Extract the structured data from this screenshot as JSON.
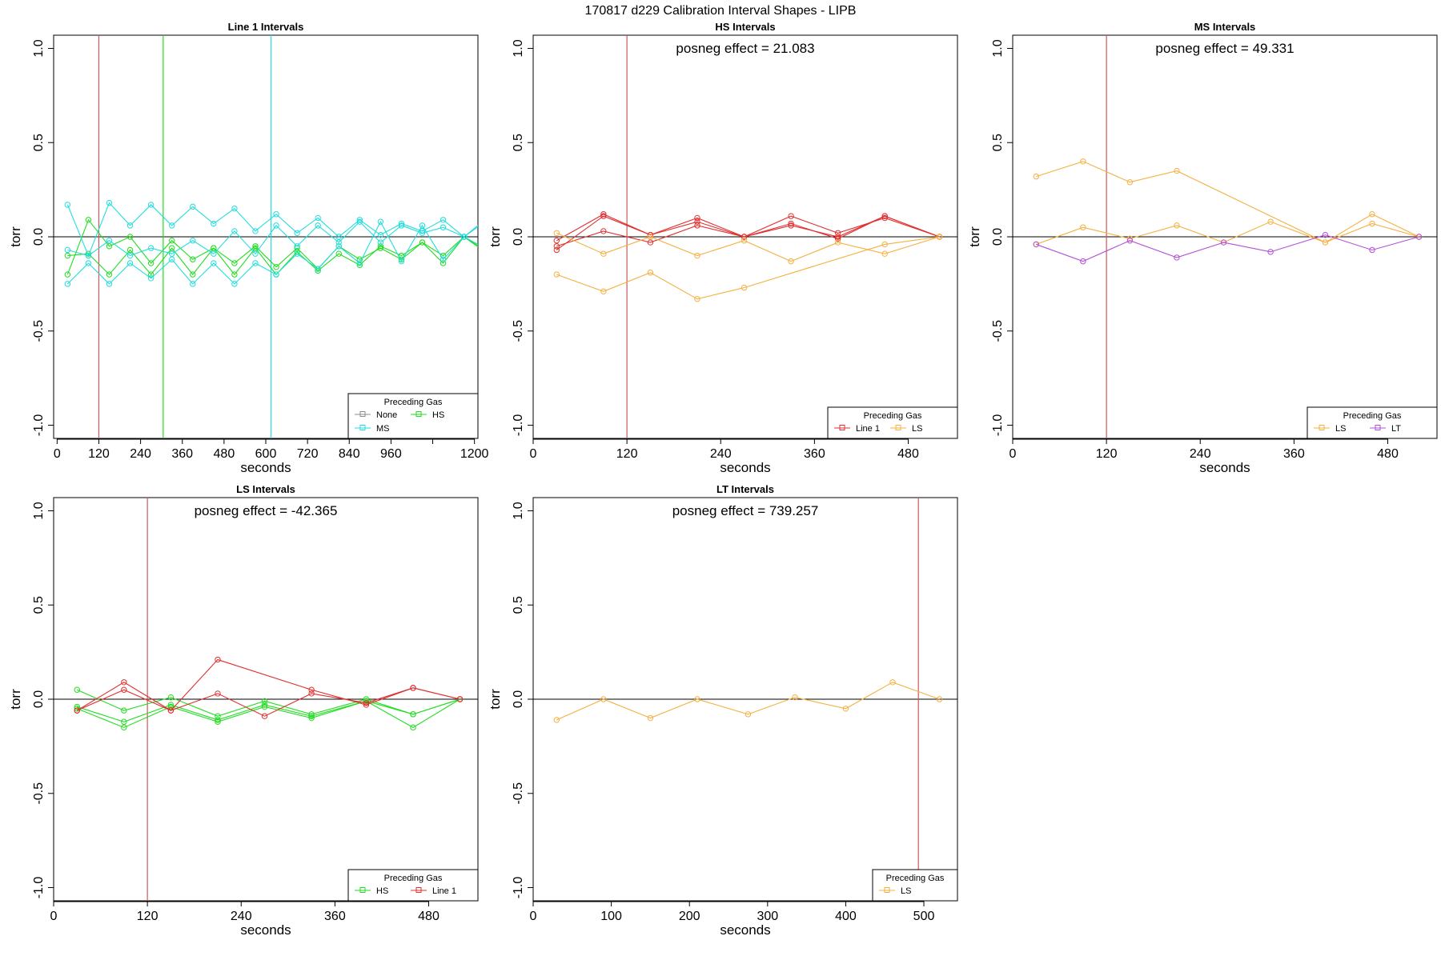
{
  "page_title": "170817   d229   Calibration Interval Shapes - LIPB",
  "colors": {
    "None": "#8c8c8c",
    "HS": "#22dd22",
    "MS": "#22dddd",
    "Line 1": "#e03030",
    "LS": "#f5b041",
    "LT": "#b24fd8",
    "hline": "#000000",
    "vline_red": "#c85a5a",
    "vline_green": "#22dd22",
    "vline_cyan": "#22dddd"
  },
  "chart_data": [
    {
      "type": "line",
      "title": "Line 1 Intervals",
      "xlabel": "seconds",
      "ylabel": "torr",
      "xlim": [
        -10,
        1210
      ],
      "ylim": [
        -1.07,
        1.07
      ],
      "xticks": [
        0,
        120,
        240,
        360,
        480,
        600,
        720,
        840,
        960,
        1080,
        1200
      ],
      "xtick_labels": [
        "0",
        "120",
        "240",
        "360",
        "480",
        "600",
        "720",
        "840",
        "960",
        "",
        "1200"
      ],
      "yticks": [
        -1.0,
        -0.5,
        0.0,
        0.5,
        1.0
      ],
      "ytick_labels": [
        "-1.0",
        "-0.5",
        "0.0",
        "0.5",
        "1.0"
      ],
      "hline": 0,
      "vlines": [
        {
          "x": 120,
          "color": "#c85a5a"
        },
        {
          "x": 305,
          "color": "#22dd22"
        },
        {
          "x": 615,
          "color": "#22dddd"
        }
      ],
      "annotation": "",
      "legend": {
        "title": "Preceding Gas",
        "position": "bottom-right",
        "columns": 2,
        "entries": [
          "None",
          "HS",
          "MS"
        ]
      },
      "series": [
        {
          "name": "HS",
          "x": [
            30,
            90,
            150,
            210,
            270,
            330,
            390,
            450,
            510,
            570,
            630,
            690,
            750,
            810,
            870,
            930,
            990,
            1050,
            1110,
            1170,
            1230
          ],
          "y": [
            -0.1,
            -0.09,
            -0.2,
            -0.07,
            -0.2,
            -0.06,
            -0.2,
            -0.06,
            -0.2,
            -0.06,
            -0.2,
            -0.08,
            -0.18,
            -0.09,
            -0.15,
            -0.05,
            -0.1,
            -0.03,
            -0.14,
            0.0,
            -0.08
          ]
        },
        {
          "name": "HS",
          "x": [
            30,
            90,
            150,
            210,
            270,
            330,
            390,
            450,
            510,
            570,
            630,
            690,
            750,
            810,
            870,
            930,
            990,
            1050,
            1110,
            1170,
            1230
          ],
          "y": [
            -0.2,
            0.09,
            -0.05,
            0.0,
            -0.14,
            -0.02,
            -0.12,
            -0.06,
            -0.14,
            -0.05,
            -0.16,
            -0.06,
            -0.17,
            -0.05,
            -0.12,
            -0.06,
            -0.12,
            -0.03,
            -0.1,
            0.0,
            -0.07
          ]
        },
        {
          "name": "MS",
          "x": [
            30,
            90,
            150,
            210,
            270,
            330,
            390,
            450,
            510,
            570,
            630,
            690,
            750,
            810,
            870,
            930,
            990,
            1050,
            1110,
            1170,
            1230
          ],
          "y": [
            0.17,
            -0.1,
            0.18,
            0.06,
            0.17,
            0.06,
            0.16,
            0.07,
            0.15,
            0.03,
            0.12,
            0.02,
            0.1,
            0.0,
            0.09,
            0.01,
            0.07,
            0.03,
            0.09,
            0.0,
            0.08
          ]
        },
        {
          "name": "MS",
          "x": [
            30,
            90,
            150,
            210,
            270,
            330,
            390,
            450,
            510,
            570,
            630,
            690,
            750,
            810,
            870,
            930,
            990,
            1050,
            1110,
            1170,
            1230
          ],
          "y": [
            -0.25,
            -0.14,
            -0.25,
            -0.14,
            -0.22,
            -0.12,
            -0.25,
            -0.14,
            -0.25,
            -0.14,
            -0.2,
            -0.09,
            -0.17,
            -0.05,
            -0.14,
            0.08,
            -0.13,
            0.06,
            -0.12,
            0.0,
            -0.06
          ]
        },
        {
          "name": "MS",
          "x": [
            30,
            90,
            150,
            210,
            270,
            330,
            390,
            450,
            510,
            570,
            630,
            690,
            750,
            810,
            870,
            930,
            990,
            1050,
            1110,
            1170,
            1230
          ],
          "y": [
            -0.07,
            -0.1,
            -0.02,
            -0.1,
            -0.06,
            -0.09,
            -0.02,
            -0.09,
            0.03,
            -0.09,
            0.06,
            -0.05,
            0.06,
            -0.03,
            0.08,
            -0.03,
            0.06,
            0.02,
            0.05,
            0.0,
            0.09
          ]
        }
      ]
    },
    {
      "type": "line",
      "title": "HS Intervals",
      "xlabel": "seconds",
      "ylabel": "torr",
      "xlim": [
        0,
        543
      ],
      "ylim": [
        -1.07,
        1.07
      ],
      "xticks": [
        0,
        120,
        240,
        360,
        480
      ],
      "xtick_labels": [
        "0",
        "120",
        "240",
        "360",
        "480"
      ],
      "yticks": [
        -1.0,
        -0.5,
        0.0,
        0.5,
        1.0
      ],
      "ytick_labels": [
        "-1.0",
        "-0.5",
        "0.0",
        "0.5",
        "1.0"
      ],
      "hline": 0,
      "vlines": [
        {
          "x": 120,
          "color": "#c85a5a"
        }
      ],
      "annotation": "posneg effect = 21.083",
      "legend": {
        "title": "Preceding Gas",
        "position": "bottom-right",
        "columns": 2,
        "entries": [
          "Line 1",
          "LS"
        ]
      },
      "series": [
        {
          "name": "Line 1",
          "x": [
            30,
            90,
            150,
            210,
            270,
            330,
            390,
            450,
            520
          ],
          "y": [
            -0.07,
            0.11,
            0.01,
            0.1,
            0.0,
            0.11,
            0.02,
            0.1,
            0.0
          ]
        },
        {
          "name": "Line 1",
          "x": [
            30,
            90,
            150,
            210,
            270,
            330,
            390,
            450,
            520
          ],
          "y": [
            -0.02,
            0.12,
            0.01,
            0.08,
            0.0,
            0.07,
            -0.01,
            0.11,
            0.0
          ]
        },
        {
          "name": "Line 1",
          "x": [
            30,
            90,
            150,
            210,
            270,
            330,
            390,
            450,
            520
          ],
          "y": [
            -0.05,
            0.03,
            -0.03,
            0.06,
            0.0,
            0.06,
            0.0,
            0.11,
            0.0
          ]
        },
        {
          "name": "LS",
          "x": [
            30,
            90,
            150,
            210,
            270,
            330,
            390,
            450,
            520
          ],
          "y": [
            0.02,
            -0.09,
            0.0,
            -0.1,
            -0.02,
            -0.13,
            -0.03,
            -0.09,
            0.0
          ]
        },
        {
          "name": "LS",
          "x": [
            30,
            90,
            150,
            210,
            270,
            450,
            520
          ],
          "y": [
            -0.2,
            -0.29,
            -0.19,
            -0.33,
            -0.27,
            -0.04,
            0.0
          ]
        }
      ]
    },
    {
      "type": "line",
      "title": "MS Intervals",
      "xlabel": "seconds",
      "ylabel": "torr",
      "xlim": [
        0,
        543
      ],
      "ylim": [
        -1.07,
        1.07
      ],
      "xticks": [
        0,
        120,
        240,
        360,
        480
      ],
      "xtick_labels": [
        "0",
        "120",
        "240",
        "360",
        "480"
      ],
      "yticks": [
        -1.0,
        -0.5,
        0.0,
        0.5,
        1.0
      ],
      "ytick_labels": [
        "-1.0",
        "-0.5",
        "0.0",
        "0.5",
        "1.0"
      ],
      "hline": 0,
      "vlines": [
        {
          "x": 120,
          "color": "#c85a5a"
        }
      ],
      "annotation": "posneg effect = 49.331",
      "legend": {
        "title": "Preceding Gas",
        "position": "bottom-right",
        "columns": 2,
        "entries": [
          "LS",
          "LT"
        ]
      },
      "series": [
        {
          "name": "LS",
          "x": [
            30,
            90,
            150,
            210,
            400,
            460,
            520
          ],
          "y": [
            0.32,
            0.4,
            0.29,
            0.35,
            -0.03,
            0.07,
            0.0
          ]
        },
        {
          "name": "LS",
          "x": [
            30,
            90,
            150,
            210,
            270,
            330,
            400,
            460,
            520
          ],
          "y": [
            -0.04,
            0.05,
            -0.01,
            0.06,
            -0.03,
            0.08,
            -0.03,
            0.12,
            0.0
          ]
        },
        {
          "name": "LT",
          "x": [
            30,
            90,
            150,
            210,
            270,
            330,
            400,
            460,
            520
          ],
          "y": [
            -0.04,
            -0.13,
            -0.02,
            -0.11,
            -0.03,
            -0.08,
            0.01,
            -0.07,
            0.0
          ]
        }
      ]
    },
    {
      "type": "line",
      "title": "LS Intervals",
      "xlabel": "seconds",
      "ylabel": "torr",
      "xlim": [
        0,
        543
      ],
      "ylim": [
        -1.07,
        1.07
      ],
      "xticks": [
        0,
        120,
        240,
        360,
        480
      ],
      "xtick_labels": [
        "0",
        "120",
        "240",
        "360",
        "480"
      ],
      "yticks": [
        -1.0,
        -0.5,
        0.0,
        0.5,
        1.0
      ],
      "ytick_labels": [
        "-1.0",
        "-0.5",
        "0.0",
        "0.5",
        "1.0"
      ],
      "hline": 0,
      "vlines": [
        {
          "x": 120,
          "color": "#c85a5a"
        }
      ],
      "annotation": "posneg effect = -42.365",
      "legend": {
        "title": "Preceding Gas",
        "position": "bottom-right",
        "columns": 2,
        "entries": [
          "HS",
          "Line 1"
        ]
      },
      "series": [
        {
          "name": "HS",
          "x": [
            30,
            90,
            150,
            210,
            270,
            330,
            400,
            460,
            520
          ],
          "y": [
            0.05,
            -0.06,
            0.01,
            -0.09,
            -0.01,
            -0.08,
            0.0,
            -0.08,
            0.0
          ]
        },
        {
          "name": "HS",
          "x": [
            30,
            90,
            150,
            210,
            270,
            330,
            400,
            460,
            520
          ],
          "y": [
            -0.04,
            -0.12,
            -0.03,
            -0.11,
            -0.03,
            -0.09,
            -0.01,
            -0.15,
            0.0
          ]
        },
        {
          "name": "HS",
          "x": [
            30,
            90,
            150,
            210,
            270,
            330,
            400,
            460,
            520
          ],
          "y": [
            -0.05,
            -0.15,
            -0.04,
            -0.12,
            -0.04,
            -0.1,
            -0.01,
            -0.08,
            0.0
          ]
        },
        {
          "name": "Line 1",
          "x": [
            30,
            90,
            150,
            210,
            330,
            400,
            460,
            520
          ],
          "y": [
            -0.06,
            0.09,
            -0.06,
            0.21,
            0.05,
            -0.03,
            0.06,
            0.0
          ]
        },
        {
          "name": "Line 1",
          "x": [
            30,
            90,
            150,
            210,
            270,
            330,
            400,
            460,
            520
          ],
          "y": [
            -0.06,
            0.05,
            -0.06,
            0.03,
            -0.09,
            0.03,
            -0.02,
            0.06,
            0.0
          ]
        }
      ]
    },
    {
      "type": "line",
      "title": "LT Intervals",
      "xlabel": "seconds",
      "ylabel": "torr",
      "xlim": [
        0,
        543
      ],
      "ylim": [
        -1.07,
        1.07
      ],
      "xticks": [
        0,
        100,
        200,
        300,
        400,
        500
      ],
      "xtick_labels": [
        "0",
        "100",
        "200",
        "300",
        "400",
        "500"
      ],
      "yticks": [
        -1.0,
        -0.5,
        0.0,
        0.5,
        1.0
      ],
      "ytick_labels": [
        "-1.0",
        "-0.5",
        "0.0",
        "0.5",
        "1.0"
      ],
      "hline": 0,
      "vlines": [
        {
          "x": 493,
          "color": "#c85a5a"
        }
      ],
      "annotation": "posneg effect = 739.257",
      "legend": {
        "title": "Preceding Gas",
        "position": "bottom-right",
        "columns": 1,
        "entries": [
          "LS"
        ]
      },
      "series": [
        {
          "name": "LS",
          "x": [
            30,
            90,
            150,
            210,
            275,
            335,
            400,
            460,
            520
          ],
          "y": [
            -0.11,
            0.0,
            -0.1,
            0.0,
            -0.08,
            0.01,
            -0.05,
            0.09,
            0.0
          ]
        }
      ]
    }
  ]
}
